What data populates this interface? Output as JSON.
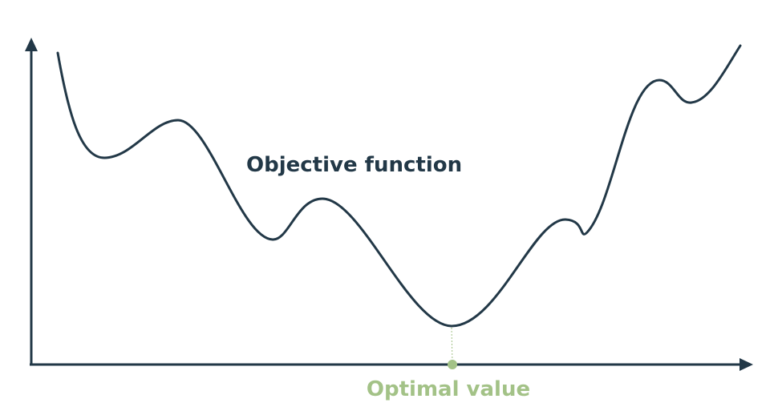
{
  "diagram": {
    "curve_label": "Objective function",
    "optimum_label": "Optimal value"
  },
  "colors": {
    "curve": "#223847",
    "axis": "#223847",
    "optimum": "#a3c287"
  }
}
